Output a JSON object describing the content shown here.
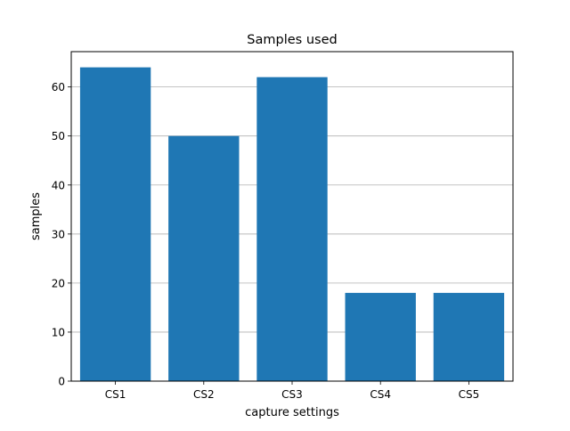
{
  "chart_data": {
    "type": "bar",
    "title": "Samples used",
    "xlabel": "capture settings",
    "ylabel": "samples",
    "categories": [
      "CS1",
      "CS2",
      "CS3",
      "CS4",
      "CS5"
    ],
    "values": [
      64,
      50,
      62,
      18,
      18
    ],
    "ylim": [
      0,
      67.2
    ],
    "yticks": [
      0,
      10,
      20,
      30,
      40,
      50,
      60
    ],
    "grid": "y-axis horizontal lines",
    "legend": "none",
    "bar_color": "#1f77b4",
    "grid_color": "#b0b0b0"
  }
}
